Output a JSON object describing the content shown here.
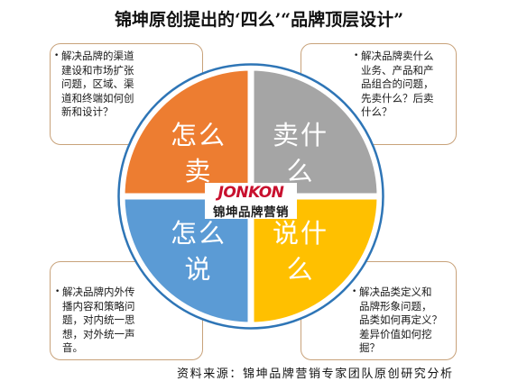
{
  "title": "锦坤原创提出的‘四么’“品牌顶层设计”",
  "colors": {
    "how_to_sell": "#ED7D31",
    "what_to_sell": "#A5A5A5",
    "how_to_say": "#5B9BD5",
    "what_to_say": "#FFC000",
    "outline": "#2E75B6",
    "note_border": "#C8A27A"
  },
  "quadrants": {
    "how_to_sell": {
      "line1": "怎么",
      "line2": "卖"
    },
    "what_to_sell": {
      "line1": "卖什",
      "line2": "么"
    },
    "how_to_say": {
      "line1": "怎么",
      "line2": "说"
    },
    "what_to_say": {
      "line1": "说什",
      "line2": "么"
    }
  },
  "notes": {
    "top_left": [
      "解决品牌的渠道",
      "建设和市场扩张",
      "问题，区域、渠",
      "道和终端如何创",
      "新和设计？"
    ],
    "top_right": [
      "解决品牌卖什么",
      "业务、产品和产",
      "品组合的问题，",
      "先卖什么？后卖",
      "什么？"
    ],
    "bottom_left": [
      "解决品牌内外传",
      "播内容和策略问",
      "题，对内统一思",
      "想，对外统一声",
      "音。"
    ],
    "bottom_right": [
      "解决品类定义和",
      "品牌形象问题，",
      "品类如何再定义？",
      "差异价值如何挖",
      "掘？"
    ]
  },
  "logo": {
    "brand": "JONKON",
    "tagline": "锦坤品牌营销"
  },
  "source": "资料来源：锦坤品牌营销专家团队原创研究分析"
}
